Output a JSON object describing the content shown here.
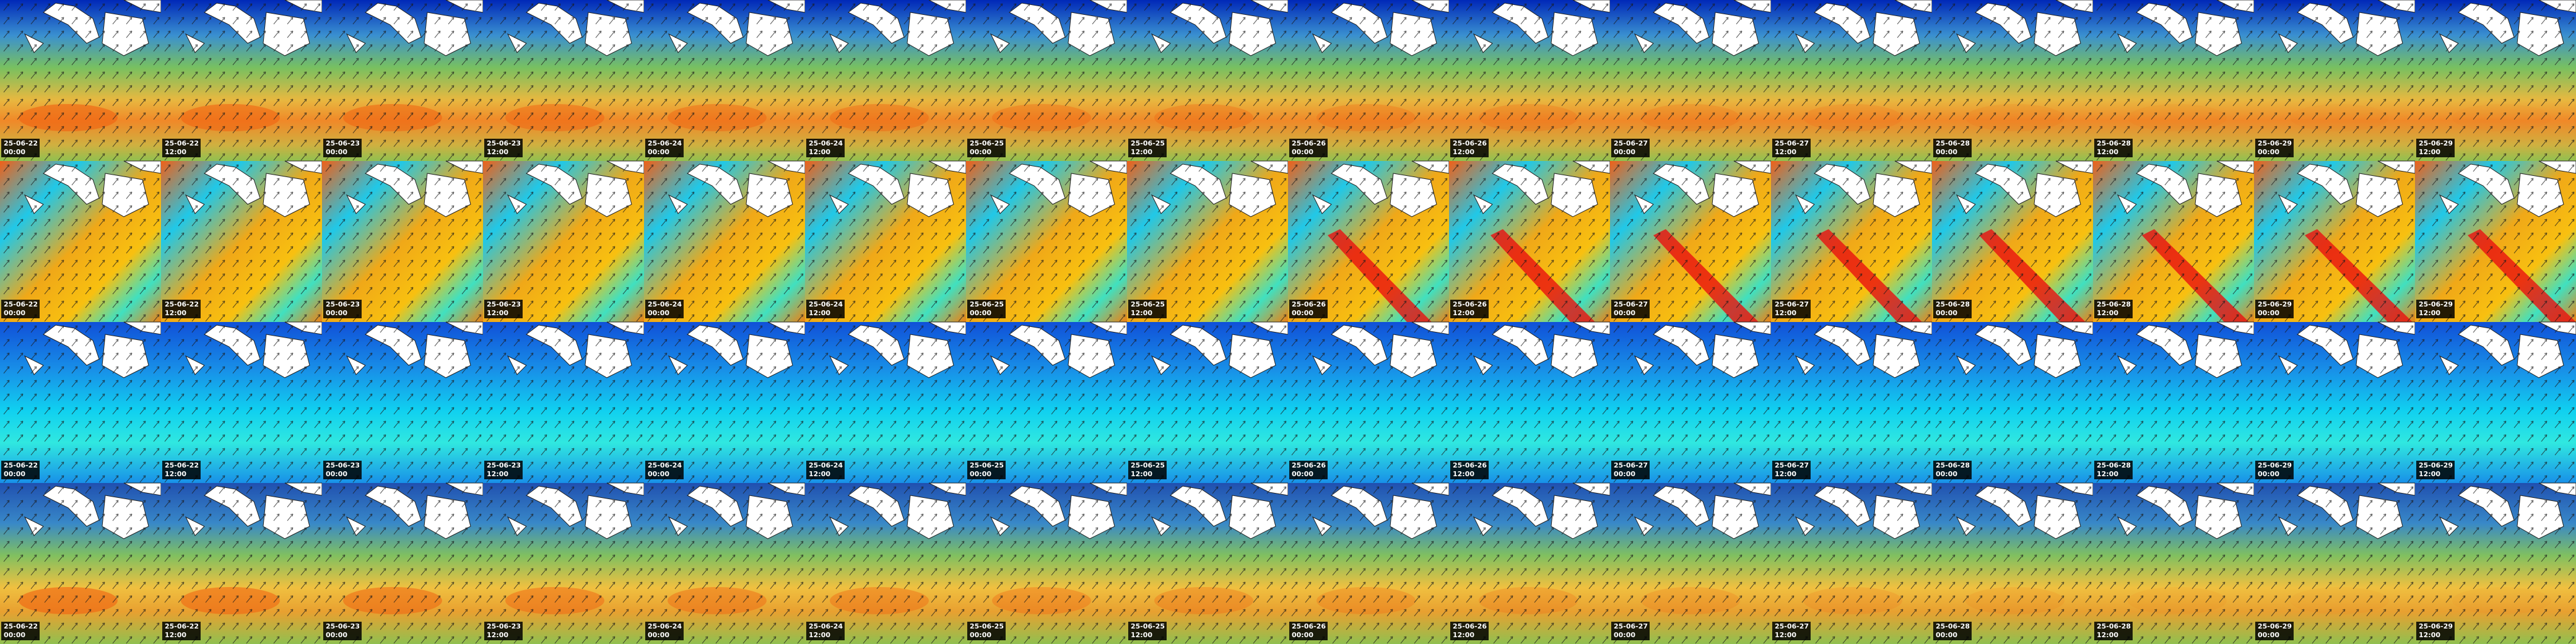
{
  "frames": [
    {
      "date": "25-06-22",
      "time": "00:00"
    },
    {
      "date": "25-06-22",
      "time": "12:00"
    },
    {
      "date": "25-06-23",
      "time": "00:00"
    },
    {
      "date": "25-06-23",
      "time": "12:00"
    },
    {
      "date": "25-06-24",
      "time": "00:00"
    },
    {
      "date": "25-06-24",
      "time": "12:00"
    },
    {
      "date": "25-06-25",
      "time": "00:00"
    },
    {
      "date": "25-06-25",
      "time": "12:00"
    },
    {
      "date": "25-06-26",
      "time": "00:00"
    },
    {
      "date": "25-06-26",
      "time": "12:00"
    },
    {
      "date": "25-06-27",
      "time": "00:00"
    },
    {
      "date": "25-06-27",
      "time": "12:00"
    },
    {
      "date": "25-06-28",
      "time": "00:00"
    },
    {
      "date": "25-06-28",
      "time": "12:00"
    },
    {
      "date": "25-06-29",
      "time": "00:00"
    },
    {
      "date": "25-06-29",
      "time": "12:00"
    }
  ]
}
